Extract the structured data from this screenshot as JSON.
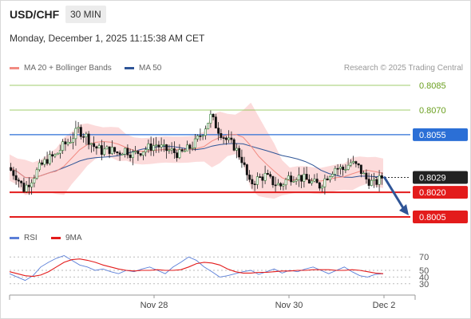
{
  "header": {
    "symbol": "USD/CHF",
    "timeframe": "30 MIN",
    "datetime": "Monday, December 1, 2025 11:15:38 AM CET"
  },
  "legend": {
    "items": [
      {
        "label": "MA 20 + Bollinger Bands",
        "color": "#f28b82"
      },
      {
        "label": "MA 50",
        "color": "#2f5597"
      }
    ],
    "credit": "Research © 2025 Trading Central"
  },
  "chart_data": [
    {
      "type": "candlestick",
      "title": "USD/CHF",
      "ylim": [
        0.7998,
        0.8089
      ],
      "x_ticks": [
        "Nov 28",
        "Nov 30",
        "Dec 2"
      ],
      "levels": [
        {
          "value": 0.8085,
          "label": "0.8085",
          "style": "resistance",
          "color": "#8bc34a"
        },
        {
          "value": 0.807,
          "label": "0.8070",
          "style": "resistance",
          "color": "#8bc34a"
        },
        {
          "value": 0.8055,
          "label": "0.8055",
          "style": "pivot",
          "color": "#2b6fd6"
        },
        {
          "value": 0.8029,
          "label": "0.8029",
          "style": "last-price",
          "color": "#222222"
        },
        {
          "value": 0.802,
          "label": "0.8020",
          "style": "support",
          "color": "#e31b1b"
        },
        {
          "value": 0.8005,
          "label": "0.8005",
          "style": "support",
          "color": "#e31b1b"
        }
      ],
      "price_path": [
        0.8035,
        0.803,
        0.8022,
        0.8028,
        0.8035,
        0.804,
        0.8042,
        0.8048,
        0.8052,
        0.8058,
        0.8054,
        0.8048,
        0.8045,
        0.8046,
        0.8044,
        0.8046,
        0.8043,
        0.8045,
        0.8047,
        0.8049,
        0.8046,
        0.8045,
        0.8043,
        0.8046,
        0.805,
        0.8057,
        0.8066,
        0.8058,
        0.8052,
        0.8048,
        0.804,
        0.8025,
        0.8028,
        0.803,
        0.8026,
        0.8024,
        0.8029,
        0.803,
        0.8028,
        0.8026,
        0.8024,
        0.803,
        0.8035,
        0.8034,
        0.8038,
        0.8035,
        0.8028,
        0.8025,
        0.8029
      ],
      "projection": {
        "from": 0.8029,
        "to": 0.8005
      },
      "series": [
        {
          "name": "MA 20 + Bollinger Bands",
          "color": "#f28b82"
        },
        {
          "name": "MA 50",
          "color": "#2f5597"
        }
      ]
    },
    {
      "type": "line",
      "title": "RSI",
      "ylim": [
        25,
        75
      ],
      "y_ticks": [
        70,
        50,
        40,
        30
      ],
      "series": [
        {
          "name": "RSI",
          "color": "#5b7fd8",
          "values": [
            45,
            40,
            35,
            42,
            55,
            62,
            68,
            72,
            65,
            58,
            55,
            50,
            52,
            48,
            45,
            50,
            48,
            52,
            55,
            50,
            45,
            55,
            62,
            70,
            65,
            55,
            48,
            40,
            42,
            45,
            48,
            50,
            44,
            48,
            52,
            46,
            50,
            48,
            52,
            55,
            50,
            45,
            50,
            55,
            48,
            42,
            40,
            44,
            45
          ]
        },
        {
          "name": "9MA",
          "color": "#e31b1b",
          "values": [
            48,
            45,
            42,
            41,
            43,
            48,
            55,
            62,
            66,
            67,
            65,
            62,
            58,
            55,
            52,
            50,
            49,
            50,
            50,
            51,
            50,
            50,
            51,
            55,
            60,
            62,
            61,
            58,
            52,
            48,
            46,
            46,
            47,
            47,
            48,
            49,
            49,
            50,
            50,
            51,
            51,
            51,
            50,
            50,
            51,
            50,
            48,
            46,
            45
          ]
        }
      ]
    }
  ]
}
